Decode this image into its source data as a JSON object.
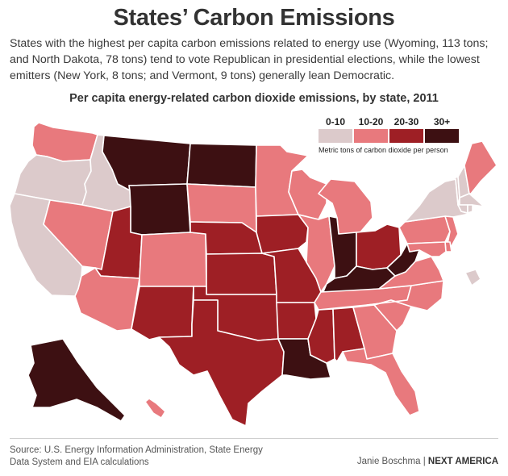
{
  "title": "States’ Carbon Emissions",
  "subtitle": "States with the highest per capita carbon emissions related to energy use (Wyoming, 113 tons; and North Dakota, 78 tons) tend to vote Republican in presidential elections, while the lowest emitters (New York, 8 tons; and Vermont, 9 tons) generally lean Democratic.",
  "map_title": "Per capita energy-related carbon dioxide emissions, by state, 2011",
  "legend": {
    "items": [
      {
        "label": "0-10",
        "color": "#dccacb"
      },
      {
        "label": "10-20",
        "color": "#e8797d"
      },
      {
        "label": "20-30",
        "color": "#9e1f25"
      },
      {
        "label": "30+",
        "color": "#3d1012"
      }
    ],
    "note": "Metric tons of carbon dioxide per person"
  },
  "colors": {
    "c0": "#dccacb",
    "c1": "#e8797d",
    "c2": "#9e1f25",
    "c3": "#3d1012",
    "border": "#ffffff"
  },
  "states": [
    {
      "code": "WA",
      "bin": 1
    },
    {
      "code": "OR",
      "bin": 0
    },
    {
      "code": "CA",
      "bin": 0
    },
    {
      "code": "ID",
      "bin": 0
    },
    {
      "code": "NV",
      "bin": 1
    },
    {
      "code": "MT",
      "bin": 3
    },
    {
      "code": "WY",
      "bin": 3
    },
    {
      "code": "UT",
      "bin": 2
    },
    {
      "code": "AZ",
      "bin": 1
    },
    {
      "code": "CO",
      "bin": 1
    },
    {
      "code": "NM",
      "bin": 2
    },
    {
      "code": "ND",
      "bin": 3
    },
    {
      "code": "SD",
      "bin": 1
    },
    {
      "code": "NE",
      "bin": 2
    },
    {
      "code": "KS",
      "bin": 2
    },
    {
      "code": "OK",
      "bin": 2
    },
    {
      "code": "TX",
      "bin": 2
    },
    {
      "code": "MN",
      "bin": 1
    },
    {
      "code": "IA",
      "bin": 2
    },
    {
      "code": "MO",
      "bin": 2
    },
    {
      "code": "AR",
      "bin": 2
    },
    {
      "code": "LA",
      "bin": 3
    },
    {
      "code": "WI",
      "bin": 1
    },
    {
      "code": "IL",
      "bin": 1
    },
    {
      "code": "MI",
      "bin": 1
    },
    {
      "code": "IN",
      "bin": 3
    },
    {
      "code": "OH",
      "bin": 2
    },
    {
      "code": "KY",
      "bin": 3
    },
    {
      "code": "TN",
      "bin": 1
    },
    {
      "code": "MS",
      "bin": 2
    },
    {
      "code": "AL",
      "bin": 2
    },
    {
      "code": "GA",
      "bin": 1
    },
    {
      "code": "FL",
      "bin": 1
    },
    {
      "code": "SC",
      "bin": 1
    },
    {
      "code": "NC",
      "bin": 1
    },
    {
      "code": "VA",
      "bin": 1
    },
    {
      "code": "WV",
      "bin": 3
    },
    {
      "code": "PA",
      "bin": 1
    },
    {
      "code": "NY",
      "bin": 0
    },
    {
      "code": "VT",
      "bin": 0
    },
    {
      "code": "NH",
      "bin": 0
    },
    {
      "code": "ME",
      "bin": 1
    },
    {
      "code": "MA",
      "bin": 0
    },
    {
      "code": "CT",
      "bin": 0
    },
    {
      "code": "RI",
      "bin": 0
    },
    {
      "code": "NJ",
      "bin": 1
    },
    {
      "code": "DE",
      "bin": 1
    },
    {
      "code": "MD",
      "bin": 1
    },
    {
      "code": "DC",
      "bin": 0
    },
    {
      "code": "AK",
      "bin": 3
    },
    {
      "code": "HI",
      "bin": 1
    }
  ],
  "source": "Source: U.S. Energy Information Administration, State Energy Data System and EIA calculations",
  "credit": {
    "author": "Janie Boschma",
    "separator": " | ",
    "brand": "NEXT AMERICA"
  }
}
